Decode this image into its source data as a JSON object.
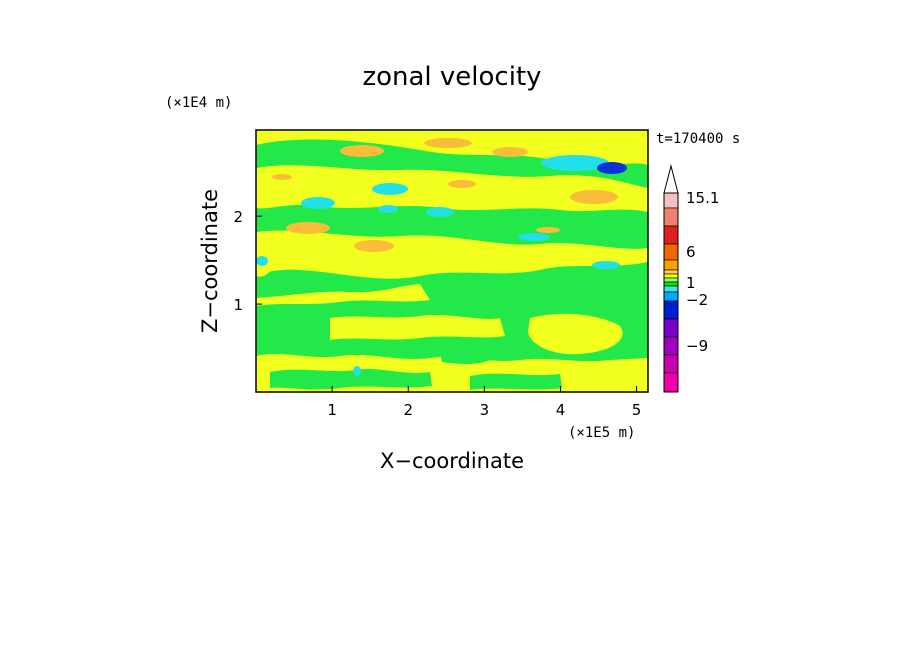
{
  "chart_data": {
    "type": "heatmap",
    "title": "zonal velocity",
    "xlabel": "X−coordinate",
    "ylabel": "Z−coordinate",
    "x_scale_note": "(×1E5 m)",
    "y_scale_note": "(×1E4 m)",
    "time_label": "t=170400 s",
    "xlim": [
      0,
      5.15
    ],
    "ylim": [
      0,
      2.98
    ],
    "x_ticks": [
      "1",
      "2",
      "3",
      "4",
      "5"
    ],
    "y_ticks": [
      "1",
      "2"
    ],
    "colorbar": {
      "labels": [
        "15.1",
        "6",
        "1",
        "−2",
        "−9"
      ],
      "colors_top_to_bottom": [
        "#f7c0c0",
        "#f08070",
        "#e02020",
        "#f06800",
        "#f8a000",
        "#ffd060",
        "#ffff00",
        "#90ff60",
        "#00e800",
        "#40e0e0",
        "#00a8ff",
        "#0020d0",
        "#7800c8",
        "#a000c0",
        "#c800b0",
        "#f000a8"
      ]
    },
    "field_colors": {
      "background": "#22e84a",
      "weak_positive": "#f2ff1e",
      "moderate_positive": "#f9bd3a",
      "weak_negative": "#22e0e8",
      "strong_negative": "#0a32d8"
    }
  }
}
